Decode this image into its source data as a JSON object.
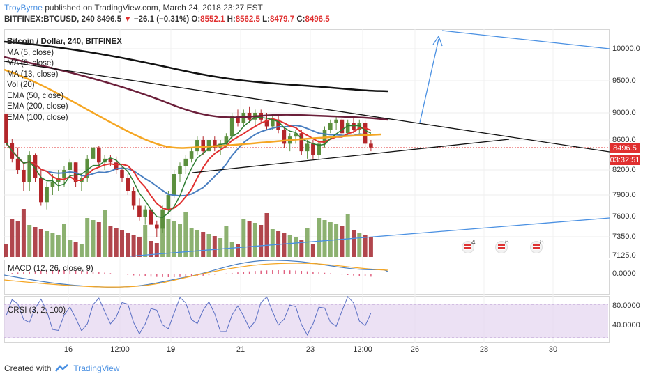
{
  "header": {
    "author": "TroyByrne",
    "published_text": "published on TradingView.com, March 24, 2018 23:27 EST",
    "symbol": "BITFINEX:BTCUSD, 240",
    "last": "8496.5",
    "change_arrow": "▼",
    "change": "−26.1 (−0.31%)",
    "o_label": "O:",
    "o_value": "8552.1",
    "h_label": "H:",
    "h_value": "8562.5",
    "l_label": "L:",
    "l_value": "8479.7",
    "c_label": "C:",
    "c_value": "8496.5"
  },
  "legend": {
    "title": "Bitcoin / Dollar, 240, BITFINEX",
    "items": [
      "MA (5, close)",
      "MA (8, close)",
      "MA (13, close)",
      "Vol (20)",
      "EMA (50, close)",
      "EMA (200, close)",
      "EMA (100, close)"
    ]
  },
  "price_axis": [
    "10000.0",
    "9500.0",
    "9000.0",
    "8600.0",
    "8200.0",
    "7900.0",
    "7600.0",
    "7350.0",
    "7125.0"
  ],
  "current_price_tag": "8496.5",
  "countdown_tag": "03:32:51",
  "events": [
    "4",
    "6",
    "8"
  ],
  "macd": {
    "label": "MACD (12, 26, close, 9)",
    "axis": "0.0000"
  },
  "crsi": {
    "label": "CRSI (3, 2, 100)",
    "axis_top": "80.0000",
    "axis_mid": "40.0000"
  },
  "time_axis": [
    "16",
    "12:00",
    "19",
    "21",
    "23",
    "12:00",
    "26",
    "28",
    "30"
  ],
  "footer": {
    "created_with": "Created with",
    "brand": "TradingView"
  },
  "colors": {
    "up": "#5b8f3d",
    "down": "#b3262a",
    "ma5": "#2e7d32",
    "ma8": "#e03030",
    "ma13": "#4a7fc1",
    "ema50": "#f5a623",
    "ema200": "#111111",
    "ema100": "#6b1f3a",
    "trendline": "#4a90e2",
    "crsi_band": "#e4d4f0"
  },
  "chart_data": {
    "type": "candlestick",
    "ylim": [
      7125,
      10300
    ],
    "candles": [
      [
        8990,
        8990,
        8520,
        8560
      ],
      [
        8560,
        8620,
        8300,
        8350
      ],
      [
        8350,
        8500,
        8150,
        8200
      ],
      [
        8200,
        8300,
        7950,
        8050
      ],
      [
        8050,
        8450,
        7950,
        8400
      ],
      [
        8400,
        8420,
        8050,
        8100
      ],
      [
        8100,
        8200,
        7750,
        7800
      ],
      [
        7800,
        8050,
        7700,
        8000
      ],
      [
        8000,
        8150,
        7900,
        8050
      ],
      [
        8050,
        8200,
        7950,
        8100
      ],
      [
        8100,
        8250,
        8000,
        8200
      ],
      [
        8200,
        8350,
        8100,
        8300
      ],
      [
        8300,
        8300,
        8000,
        8050
      ],
      [
        8050,
        8150,
        7950,
        8100
      ],
      [
        8100,
        8400,
        8050,
        8350
      ],
      [
        8350,
        8550,
        8300,
        8500
      ],
      [
        8500,
        8520,
        8250,
        8300
      ],
      [
        8300,
        8400,
        8200,
        8350
      ],
      [
        8350,
        8400,
        8250,
        8300
      ],
      [
        8300,
        8380,
        8150,
        8200
      ],
      [
        8200,
        8250,
        8050,
        8100
      ],
      [
        8100,
        8150,
        7900,
        7950
      ],
      [
        7950,
        8000,
        7700,
        7750
      ],
      [
        7750,
        7850,
        7550,
        7600
      ],
      [
        7600,
        7750,
        7500,
        7700
      ],
      [
        7700,
        7750,
        7450,
        7500
      ],
      [
        7500,
        7550,
        7350,
        7450
      ],
      [
        7450,
        7750,
        7400,
        7700
      ],
      [
        7700,
        7950,
        7650,
        7900
      ],
      [
        7900,
        8200,
        7850,
        8150
      ],
      [
        8150,
        8300,
        8050,
        8250
      ],
      [
        8250,
        8400,
        8150,
        8350
      ],
      [
        8350,
        8500,
        8300,
        8450
      ],
      [
        8450,
        8650,
        8400,
        8600
      ],
      [
        8600,
        8650,
        8400,
        8450
      ],
      [
        8450,
        8650,
        8400,
        8600
      ],
      [
        8600,
        8650,
        8450,
        8500
      ],
      [
        8500,
        8600,
        8400,
        8550
      ],
      [
        8550,
        8700,
        8500,
        8650
      ],
      [
        8650,
        9000,
        8600,
        8950
      ],
      [
        8950,
        9050,
        8800,
        8850
      ],
      [
        8850,
        9050,
        8800,
        9000
      ],
      [
        9000,
        9100,
        8850,
        8900
      ],
      [
        8900,
        9050,
        8800,
        9000
      ],
      [
        9000,
        9050,
        8850,
        8900
      ],
      [
        8900,
        9000,
        8750,
        8800
      ],
      [
        8800,
        8950,
        8750,
        8900
      ],
      [
        8900,
        8950,
        8700,
        8750
      ],
      [
        8750,
        8800,
        8500,
        8550
      ],
      [
        8550,
        8700,
        8450,
        8650
      ],
      [
        8650,
        8750,
        8550,
        8700
      ],
      [
        8700,
        8750,
        8400,
        8450
      ],
      [
        8450,
        8600,
        8350,
        8550
      ],
      [
        8550,
        8600,
        8350,
        8400
      ],
      [
        8400,
        8600,
        8350,
        8550
      ],
      [
        8550,
        8800,
        8500,
        8750
      ],
      [
        8750,
        8900,
        8700,
        8850
      ],
      [
        8850,
        8950,
        8750,
        8900
      ],
      [
        8900,
        8950,
        8650,
        8700
      ],
      [
        8700,
        8900,
        8650,
        8850
      ],
      [
        8850,
        8950,
        8700,
        8750
      ],
      [
        8750,
        8900,
        8700,
        8850
      ],
      [
        8850,
        8900,
        8500,
        8550
      ],
      [
        8550,
        8600,
        8450,
        8500
      ]
    ]
  }
}
